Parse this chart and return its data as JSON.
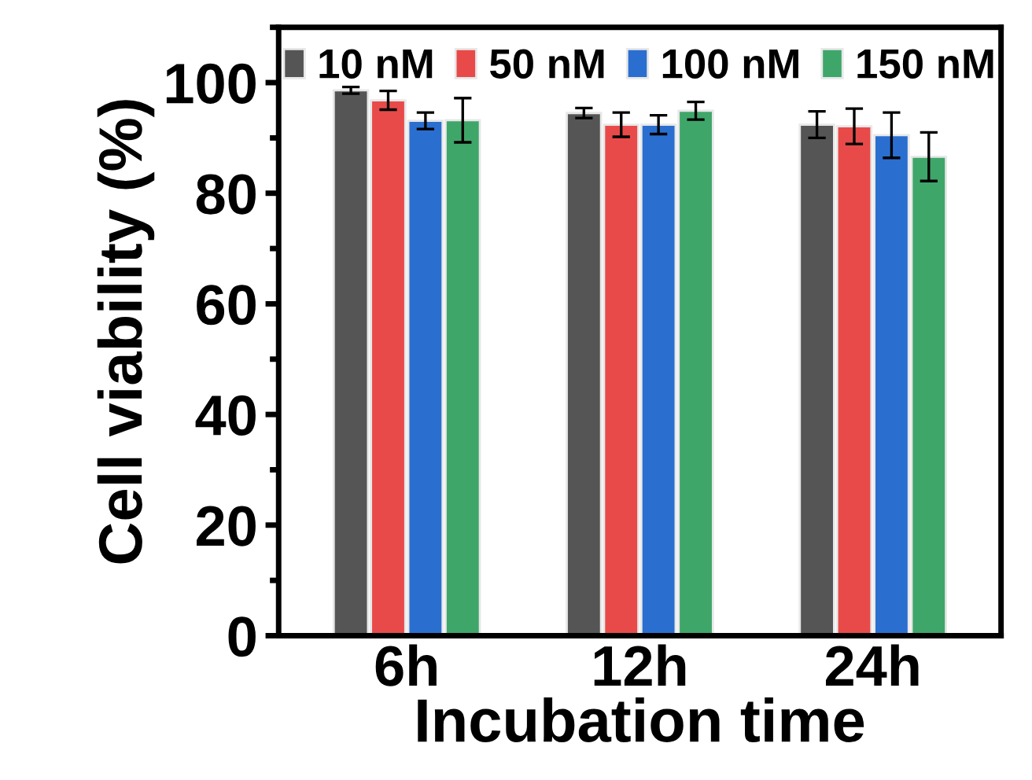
{
  "chart_data": {
    "type": "bar",
    "xlabel": "Incubation time",
    "ylabel": "Cell viability (%)",
    "categories": [
      "6h",
      "12h",
      "24h"
    ],
    "series": [
      {
        "name": "10 nM",
        "color": "#555555",
        "values": [
          98.6,
          94.5,
          92.4
        ],
        "errors": [
          0.6,
          0.9,
          2.4
        ]
      },
      {
        "name": "50 nM",
        "color": "#e84a4a",
        "values": [
          96.8,
          92.4,
          92.1
        ],
        "errors": [
          1.7,
          2.2,
          3.2
        ]
      },
      {
        "name": "100 nM",
        "color": "#2a6fd0",
        "values": [
          93.1,
          92.4,
          90.5
        ],
        "errors": [
          1.5,
          1.7,
          4.1
        ]
      },
      {
        "name": "150 nM",
        "color": "#3fa66a",
        "values": [
          93.2,
          94.9,
          86.6
        ],
        "errors": [
          4.0,
          1.6,
          4.4
        ]
      }
    ],
    "ylim": [
      0,
      110
    ],
    "yticks": [
      0,
      20,
      40,
      60,
      80,
      100
    ],
    "grid": false,
    "legend": "top"
  }
}
